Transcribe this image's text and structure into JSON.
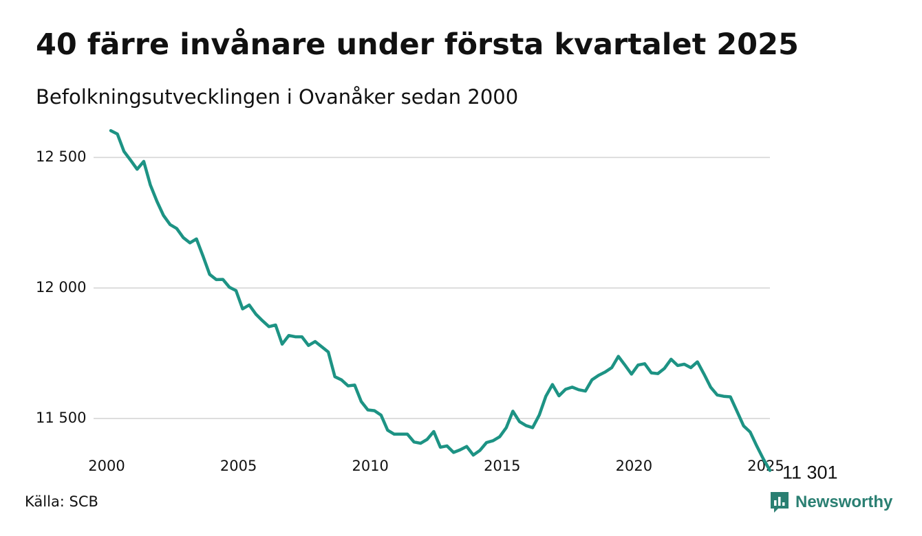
{
  "header": {
    "title": "40 färre invånare under första kvartalet 2025",
    "subtitle": "Befolkningsutvecklingen i Ovanåker sedan 2000"
  },
  "footer": {
    "source": "Källa: SCB",
    "brand": "Newsworthy"
  },
  "colors": {
    "line": "#1d9384",
    "grid": "#dddddd",
    "brand": "#2a7f72",
    "text": "#111111"
  },
  "icons": {
    "logo": "newsworthy-logo-icon"
  },
  "chart_data": {
    "type": "line",
    "title": "40 färre invånare under första kvartalet 2025",
    "subtitle": "Befolkningsutvecklingen i Ovanåker sedan 2000",
    "xlabel": "",
    "ylabel": "",
    "grid": "horizontal",
    "legend": "none",
    "xlim": [
      2000,
      2025
    ],
    "ylim": [
      11350,
      12640
    ],
    "x_ticks": [
      2000,
      2005,
      2010,
      2015,
      2020,
      2025
    ],
    "x_tick_labels": [
      "2000",
      "2005",
      "2010",
      "2015",
      "2020",
      "2025"
    ],
    "y_ticks": [
      11500,
      12000,
      12500
    ],
    "y_tick_labels": [
      "11 500",
      "12 000",
      "12 500"
    ],
    "end_label": "11 301",
    "series": [
      {
        "x": [
          2000,
          2000.25,
          2000.5,
          2000.75,
          2001,
          2001.25,
          2001.5,
          2001.75,
          2002,
          2002.25,
          2002.5,
          2002.75,
          2003,
          2003.25,
          2003.5,
          2003.75,
          2004,
          2004.25,
          2004.5,
          2004.75,
          2005,
          2005.25,
          2005.5,
          2005.75,
          2006,
          2006.25,
          2006.5,
          2006.75,
          2007,
          2007.25,
          2007.5,
          2007.75,
          2008,
          2008.25,
          2008.5,
          2008.75,
          2009,
          2009.25,
          2009.5,
          2009.75,
          2010,
          2010.25,
          2010.5,
          2010.75,
          2011,
          2011.25,
          2011.5,
          2011.75,
          2012,
          2012.25,
          2012.5,
          2012.75,
          2013,
          2013.25,
          2013.5,
          2013.75,
          2014,
          2014.25,
          2014.5,
          2014.75,
          2015,
          2015.25,
          2015.5,
          2015.75,
          2016,
          2016.25,
          2016.5,
          2016.75,
          2017,
          2017.25,
          2017.5,
          2017.75,
          2018,
          2018.25,
          2018.5,
          2018.75,
          2019,
          2019.25,
          2019.5,
          2019.75,
          2020,
          2020.25,
          2020.5,
          2020.75,
          2021,
          2021.25,
          2021.5,
          2021.75,
          2022,
          2022.25,
          2022.5,
          2022.75,
          2023,
          2023.25,
          2023.5,
          2023.75,
          2024,
          2024.25,
          2024.5,
          2024.75,
          2025
        ],
        "values": [
          12603,
          12590,
          12523,
          12490,
          12455,
          12485,
          12395,
          12332,
          12278,
          12243,
          12228,
          12193,
          12173,
          12188,
          12122,
          12052,
          12032,
          12033,
          12003,
          11990,
          11920,
          11935,
          11900,
          11875,
          11852,
          11858,
          11785,
          11818,
          11813,
          11813,
          11780,
          11795,
          11775,
          11755,
          11660,
          11648,
          11625,
          11628,
          11565,
          11533,
          11530,
          11513,
          11455,
          11440,
          11440,
          11440,
          11410,
          11405,
          11420,
          11450,
          11390,
          11395,
          11370,
          11380,
          11393,
          11360,
          11378,
          11408,
          11415,
          11430,
          11465,
          11528,
          11488,
          11473,
          11465,
          11513,
          11585,
          11630,
          11587,
          11612,
          11620,
          11610,
          11605,
          11648,
          11665,
          11678,
          11695,
          11738,
          11705,
          11670,
          11705,
          11710,
          11675,
          11672,
          11692,
          11727,
          11703,
          11708,
          11695,
          11717,
          11670,
          11620,
          11590,
          11585,
          11583,
          11528,
          11472,
          11448,
          11395,
          11345,
          11301
        ]
      }
    ]
  }
}
